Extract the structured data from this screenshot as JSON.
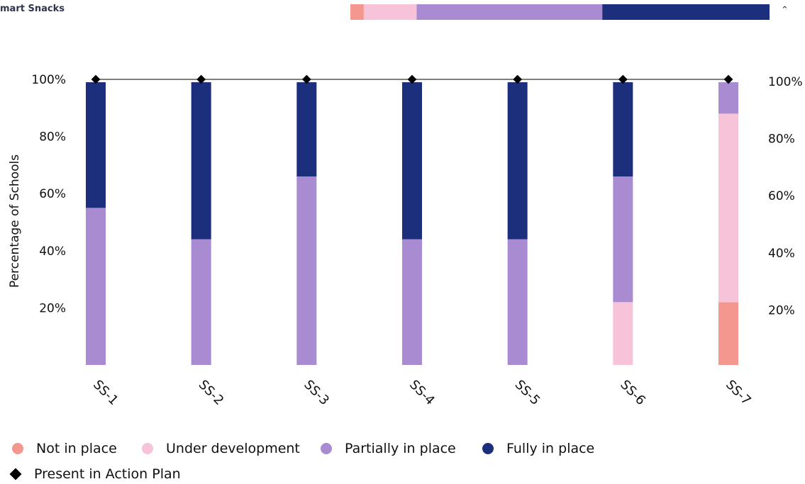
{
  "header": {
    "title": "mart Snacks",
    "collapse_icon": "chevron-up-icon"
  },
  "summary_bar": {
    "segments": [
      {
        "name": "Not in place",
        "fraction": 0.032
      },
      {
        "name": "Under development",
        "fraction": 0.126
      },
      {
        "name": "Partially in place",
        "fraction": 0.443
      },
      {
        "name": "Fully in place",
        "fraction": 0.399
      }
    ]
  },
  "colors": {
    "Not in place": "#f4988f",
    "Under development": "#f6c3d8",
    "Partially in place": "#a98bd2",
    "Fully in place": "#1c2f7c",
    "Present in Action Plan": "#000000"
  },
  "legend": [
    {
      "label": "Not in place",
      "icon": "circle"
    },
    {
      "label": "Under development",
      "icon": "circle"
    },
    {
      "label": "Partially in place",
      "icon": "circle"
    },
    {
      "label": "Fully in place",
      "icon": "circle"
    },
    {
      "label": "Present in Action Plan",
      "icon": "diamond"
    }
  ],
  "chart_data": {
    "type": "bar",
    "stacked": true,
    "categories": [
      "SS-1",
      "SS-2",
      "SS-3",
      "SS-4",
      "SS-5",
      "SS-6",
      "SS-7"
    ],
    "series": [
      {
        "name": "Not in place",
        "values": [
          0,
          0,
          0,
          0,
          0,
          0,
          22
        ]
      },
      {
        "name": "Under development",
        "values": [
          0,
          0,
          0,
          0,
          0,
          22,
          66
        ]
      },
      {
        "name": "Partially in place",
        "values": [
          55,
          44,
          66,
          44,
          44,
          44,
          11
        ]
      },
      {
        "name": "Fully in place",
        "values": [
          44,
          55,
          33,
          55,
          55,
          33,
          0
        ]
      }
    ],
    "line_series": {
      "name": "Present in Action Plan",
      "values": [
        100,
        100,
        100,
        100,
        100,
        100,
        100
      ]
    },
    "ylabel": "Percentage of Schools",
    "ylim": [
      0,
      100
    ],
    "yticks": [
      20,
      40,
      60,
      80,
      100
    ],
    "ytick_labels": [
      "20%",
      "40%",
      "60%",
      "80%",
      "100%"
    ],
    "legend_position": "bottom-left",
    "grid": false
  }
}
